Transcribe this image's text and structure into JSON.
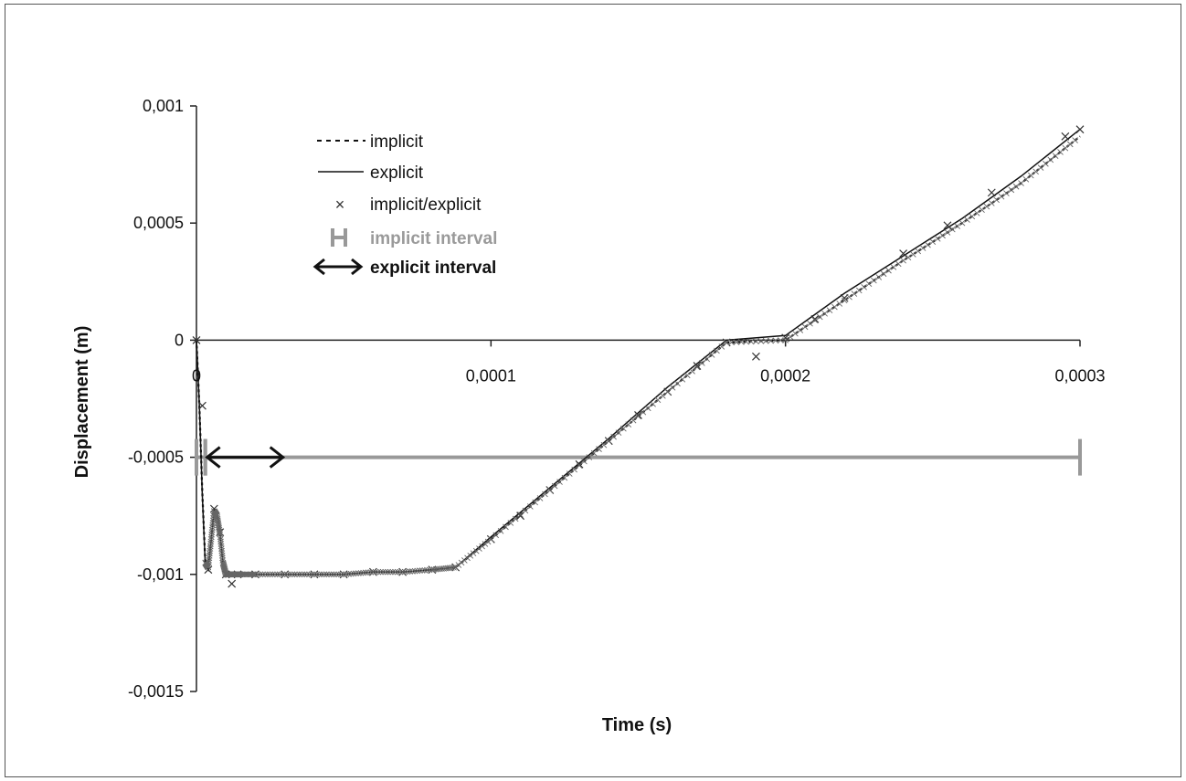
{
  "chart_data": {
    "type": "line",
    "title": "",
    "xlabel": "Time (s)",
    "ylabel": "Displacement (m)",
    "xlim": [
      0,
      0.0003
    ],
    "ylim": [
      -0.0015,
      0.001
    ],
    "x_ticks": [
      "0",
      "0,0001",
      "0,0002",
      "0,0003"
    ],
    "y_ticks": [
      "0,001",
      "0,0005",
      "0",
      "-0,0005",
      "-0,001",
      "-0,0015"
    ],
    "grid": false,
    "legend_position": "top-left",
    "colors": {
      "implicit": "#111111",
      "explicit": "#111111",
      "implicit_explicit": "#333333",
      "implicit_interval": "#999999",
      "explicit_interval": "#111111"
    },
    "series": [
      {
        "name": "implicit",
        "style": "dotted",
        "x": [
          0,
          1e-06,
          2e-06,
          3e-06,
          4e-06,
          5e-06,
          6e-06,
          7e-06,
          8e-06,
          9e-06,
          1e-05,
          1.1e-05,
          1.2e-05,
          1.3e-05,
          1.4e-05,
          1.5e-05,
          2e-05,
          3e-05,
          4e-05,
          5e-05,
          6e-05,
          7e-05,
          8e-05,
          8.8e-05,
          0.0001,
          0.00012,
          0.00014,
          0.00016,
          0.00018,
          0.0002,
          0.00022,
          0.00024,
          0.00026,
          0.00028,
          0.0003
        ],
        "y": [
          0,
          -0.00028,
          -0.00065,
          -0.00095,
          -0.00097,
          -0.00085,
          -0.00073,
          -0.00075,
          -0.00083,
          -0.00095,
          -0.001,
          -0.001,
          -0.001,
          -0.001,
          -0.001,
          -0.001,
          -0.001,
          -0.001,
          -0.001,
          -0.001,
          -0.00099,
          -0.00099,
          -0.00098,
          -0.00097,
          -0.00085,
          -0.00064,
          -0.00043,
          -0.00022,
          -1e-05,
          0.0,
          0.00017,
          0.00034,
          0.0005,
          0.00067,
          0.00087
        ]
      },
      {
        "name": "explicit",
        "style": "solid",
        "x": [
          0,
          1e-06,
          2e-06,
          3e-06,
          4e-06,
          5e-06,
          6e-06,
          7e-06,
          8e-06,
          9e-06,
          1e-05,
          1.1e-05,
          1.2e-05,
          1.3e-05,
          1.4e-05,
          1.5e-05,
          2e-05,
          3e-05,
          4e-05,
          5e-05,
          6e-05,
          7e-05,
          8e-05,
          8.8e-05,
          0.0001,
          0.00012,
          0.00014,
          0.00016,
          0.00018,
          0.0002,
          0.00022,
          0.00024,
          0.00026,
          0.00028,
          0.0003
        ],
        "y": [
          0,
          -0.00028,
          -0.00066,
          -0.00096,
          -0.00098,
          -0.00086,
          -0.00072,
          -0.00073,
          -0.00082,
          -0.00096,
          -0.00101,
          -0.001,
          -0.001,
          -0.001,
          -0.001,
          -0.001,
          -0.001,
          -0.001,
          -0.001,
          -0.001,
          -0.00099,
          -0.00099,
          -0.00098,
          -0.00097,
          -0.00084,
          -0.00063,
          -0.00042,
          -0.0002,
          0.0,
          2e-05,
          0.0002,
          0.00036,
          0.00052,
          0.0007,
          0.0009
        ]
      },
      {
        "name": "implicit/explicit",
        "style": "markers",
        "x": [
          0,
          2e-06,
          4e-06,
          6e-06,
          8e-06,
          1e-05,
          1.2e-05,
          1.4e-05,
          2e-05,
          3e-05,
          4e-05,
          5e-05,
          6e-05,
          7e-05,
          8e-05,
          8.8e-05,
          0.0001,
          0.00011,
          0.00012,
          0.00013,
          0.00014,
          0.00015,
          0.00016,
          0.00017,
          0.00018,
          0.00019,
          0.0002,
          0.00021,
          0.00022,
          0.00024,
          0.000255,
          0.00027,
          0.000295,
          0.0003
        ],
        "y": [
          0,
          -0.00028,
          -0.00098,
          -0.00072,
          -0.00082,
          -0.001,
          -0.00104,
          -0.001,
          -0.001,
          -0.001,
          -0.001,
          -0.001,
          -0.00099,
          -0.00099,
          -0.00098,
          -0.00097,
          -0.00085,
          -0.00075,
          -0.00064,
          -0.00053,
          -0.00043,
          -0.00032,
          -0.00022,
          -0.00011,
          -1e-05,
          -7e-05,
          1e-05,
          9e-05,
          0.00018,
          0.00037,
          0.00049,
          0.00063,
          0.00087,
          0.0009
        ]
      }
    ],
    "intervals": [
      {
        "name": "implicit interval",
        "y": -0.0005,
        "segments": [
          [
            0,
            3e-06
          ],
          [
            3e-06,
            0.0003
          ]
        ]
      },
      {
        "name": "explicit interval",
        "y": -0.0005,
        "segments": [
          [
            3e-06,
            3e-05
          ]
        ]
      }
    ],
    "legend": [
      {
        "label": "implicit"
      },
      {
        "label": "explicit"
      },
      {
        "label": "implicit/explicit"
      },
      {
        "label": "implicit interval"
      },
      {
        "label": "explicit interval"
      }
    ]
  }
}
